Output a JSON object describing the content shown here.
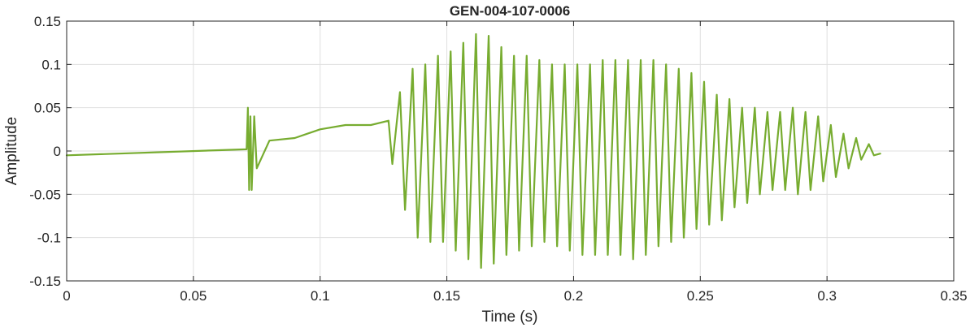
{
  "chart_data": {
    "type": "line",
    "title": "GEN-004-107-0006",
    "xlabel": "Time (s)",
    "ylabel": "Amplitude",
    "xlim": [
      0,
      0.35
    ],
    "ylim": [
      -0.15,
      0.15
    ],
    "xticks": [
      0,
      0.05,
      0.1,
      0.15,
      0.2,
      0.25,
      0.3,
      0.35
    ],
    "yticks": [
      -0.15,
      -0.1,
      -0.05,
      0,
      0.05,
      0.1,
      0.15
    ],
    "xtick_labels": [
      "0",
      "0.05",
      "0.1",
      "0.15",
      "0.2",
      "0.25",
      "0.3",
      "0.35"
    ],
    "ytick_labels": [
      "-0.15",
      "-0.1",
      "-0.05",
      "0",
      "0.05",
      "0.1",
      "0.15"
    ],
    "grid": true,
    "series": [
      {
        "color": "#77AC30",
        "x": [
          0,
          0.071,
          0.0715,
          0.072,
          0.0725,
          0.073,
          0.074,
          0.075,
          0.08,
          0.09,
          0.1,
          0.11,
          0.12,
          0.127,
          0.1285,
          0.1315,
          0.1335,
          0.1365,
          0.1385,
          0.1415,
          0.1435,
          0.1465,
          0.1485,
          0.1515,
          0.1535,
          0.1565,
          0.1585,
          0.1615,
          0.1635,
          0.1665,
          0.1685,
          0.1715,
          0.1735,
          0.1765,
          0.1785,
          0.1815,
          0.1835,
          0.1865,
          0.1885,
          0.1915,
          0.1935,
          0.1965,
          0.1985,
          0.2015,
          0.2035,
          0.2065,
          0.2085,
          0.2115,
          0.2135,
          0.2165,
          0.2185,
          0.2215,
          0.2235,
          0.2265,
          0.2285,
          0.2315,
          0.2335,
          0.2365,
          0.2385,
          0.2415,
          0.2435,
          0.2465,
          0.2485,
          0.2515,
          0.2535,
          0.2565,
          0.2585,
          0.2615,
          0.2635,
          0.2665,
          0.2685,
          0.2715,
          0.2735,
          0.2765,
          0.2785,
          0.2815,
          0.2835,
          0.2865,
          0.2885,
          0.2915,
          0.2935,
          0.2965,
          0.2985,
          0.3015,
          0.3035,
          0.3065,
          0.3085,
          0.3115,
          0.3135,
          0.3165,
          0.3185,
          0.321
        ],
        "y": [
          -0.005,
          0.002,
          0.05,
          -0.045,
          0.04,
          -0.045,
          0.04,
          -0.02,
          0.012,
          0.015,
          0.025,
          0.03,
          0.03,
          0.035,
          -0.015,
          0.068,
          -0.068,
          0.095,
          -0.1,
          0.1,
          -0.105,
          0.11,
          -0.105,
          0.115,
          -0.115,
          0.125,
          -0.125,
          0.135,
          -0.135,
          0.133,
          -0.13,
          0.12,
          -0.12,
          0.11,
          -0.115,
          0.11,
          -0.11,
          0.105,
          -0.105,
          0.1,
          -0.11,
          0.1,
          -0.115,
          0.1,
          -0.12,
          0.1,
          -0.12,
          0.105,
          -0.12,
          0.105,
          -0.12,
          0.105,
          -0.125,
          0.105,
          -0.12,
          0.105,
          -0.11,
          0.1,
          -0.105,
          0.095,
          -0.1,
          0.09,
          -0.09,
          0.08,
          -0.085,
          0.065,
          -0.08,
          0.06,
          -0.065,
          0.05,
          -0.06,
          0.05,
          -0.05,
          0.045,
          -0.045,
          0.045,
          -0.045,
          0.05,
          -0.05,
          0.045,
          -0.045,
          0.04,
          -0.035,
          0.03,
          -0.03,
          0.02,
          -0.02,
          0.015,
          -0.01,
          0.008,
          -0.005,
          -0.003
        ]
      }
    ]
  }
}
